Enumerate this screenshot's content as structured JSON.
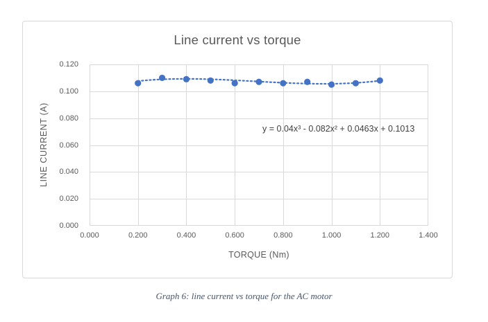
{
  "chart": {
    "title": "Line current vs torque",
    "equation": "y = 0.04x³ - 0.082x² + 0.0463x + 0.1013",
    "x_axis_title": "TORQUE (Nm)",
    "y_axis_title": "LINE CURRENT (A)"
  },
  "caption": "Graph 6: line current vs torque for the AC motor",
  "chart_data": {
    "type": "scatter",
    "title": "Line current vs torque",
    "xlabel": "TORQUE (Nm)",
    "ylabel": "LINE CURRENT (A)",
    "xlim": [
      0,
      1.4
    ],
    "ylim": [
      0,
      0.12
    ],
    "x_ticks": [
      0,
      0.2,
      0.4,
      0.6,
      0.8,
      1.0,
      1.2,
      1.4
    ],
    "x_tick_labels": [
      "0.000",
      "0.200",
      "0.400",
      "0.600",
      "0.800",
      "1.000",
      "1.200",
      "1.400"
    ],
    "y_ticks": [
      0,
      0.02,
      0.04,
      0.06,
      0.08,
      0.1,
      0.12
    ],
    "y_tick_labels": [
      "0.000",
      "0.020",
      "0.040",
      "0.060",
      "0.080",
      "0.100",
      "0.120"
    ],
    "grid": true,
    "legend": false,
    "series": [
      {
        "name": "line current",
        "x": [
          0.2,
          0.3,
          0.4,
          0.5,
          0.6,
          0.7,
          0.8,
          0.9,
          1.0,
          1.1,
          1.2
        ],
        "y": [
          0.106,
          0.11,
          0.109,
          0.108,
          0.106,
          0.107,
          0.106,
          0.107,
          0.105,
          0.106,
          0.108
        ]
      }
    ],
    "trendline": {
      "type": "polynomial",
      "degree": 3,
      "coefficients": [
        0.04,
        -0.082,
        0.0463,
        0.1013
      ],
      "equation": "y = 0.04x³ - 0.082x² + 0.0463x + 0.1013",
      "style": "dotted",
      "range": [
        0.2,
        1.2
      ]
    },
    "colors": {
      "point": "#4472c4",
      "trendline": "#4472c4",
      "gridline": "#d9d9d9",
      "axis_text": "#595959",
      "title_text": "#595959",
      "equation_text": "#404040",
      "caption_text": "#44546a",
      "border": "#d9d9d9"
    }
  }
}
